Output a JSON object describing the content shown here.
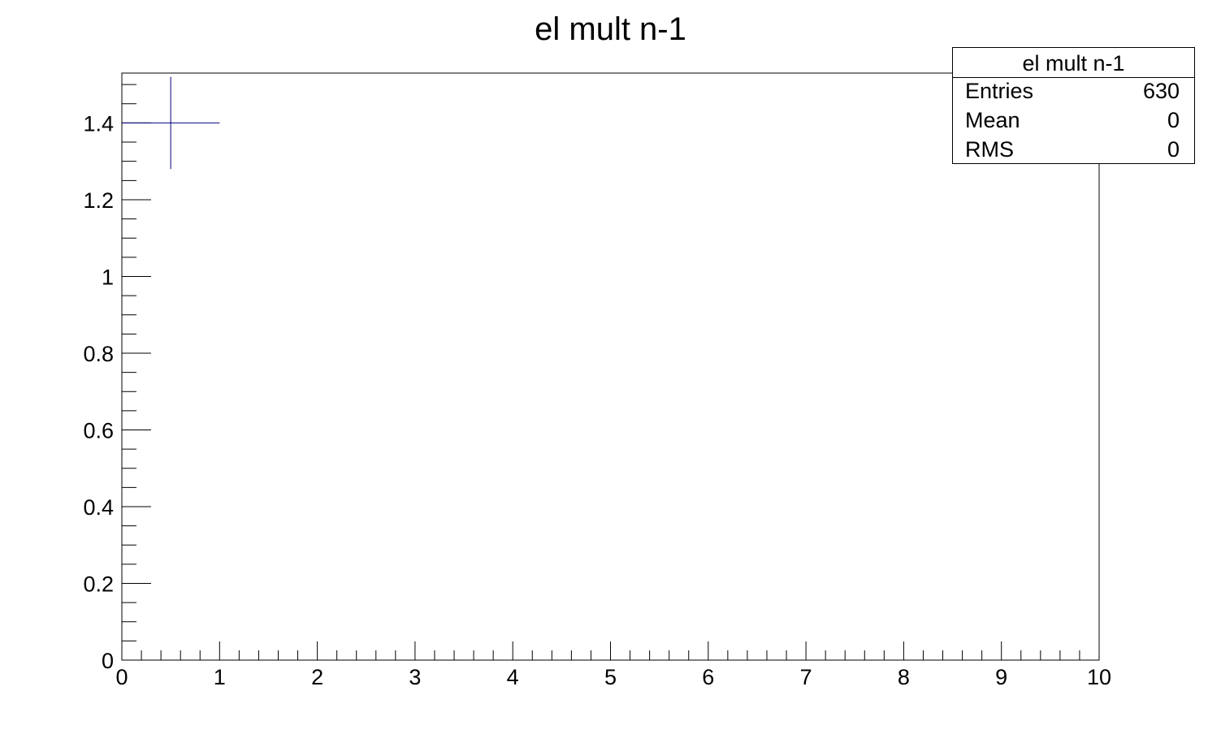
{
  "chart_data": {
    "type": "histogram",
    "title": "el mult n-1",
    "xlabel": "",
    "ylabel": "",
    "xlim": [
      0,
      10
    ],
    "ylim": [
      0,
      1.53
    ],
    "x_ticks": [
      0,
      1,
      2,
      3,
      4,
      5,
      6,
      7,
      8,
      9,
      10
    ],
    "y_ticks": [
      0,
      0.2,
      0.4,
      0.6,
      0.8,
      1,
      1.2,
      1.4
    ],
    "points": [
      {
        "x": 0.5,
        "y": 1.4,
        "x_err": 0.5,
        "y_err": 0.12
      }
    ],
    "marker_color": "#000080",
    "grid": false
  },
  "stats_box": {
    "title": "el mult n-1",
    "rows": [
      {
        "key": "Entries",
        "value": "630"
      },
      {
        "key": "Mean",
        "value": "0"
      },
      {
        "key": "RMS",
        "value": "0"
      }
    ]
  }
}
